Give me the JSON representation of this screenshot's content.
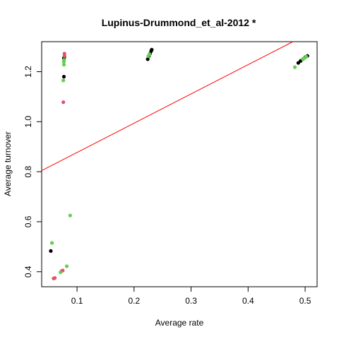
{
  "chart_data": {
    "type": "scatter",
    "title": "Lupinus-Drummond_et_al-2012 *",
    "xlabel": "Average rate",
    "ylabel": "Average turnover",
    "xlim": [
      0.038,
      0.521
    ],
    "ylim": [
      0.34,
      1.32
    ],
    "x_ticks": [
      0.1,
      0.2,
      0.3,
      0.4,
      0.5
    ],
    "x_tick_labels": [
      "0.1",
      "0.2",
      "0.3",
      "0.4",
      "0.5"
    ],
    "y_ticks": [
      0.4,
      0.6,
      0.8,
      1.0,
      1.2
    ],
    "y_tick_labels": [
      "0.4",
      "0.6",
      "0.8",
      "1.0",
      "1.2"
    ],
    "grid": false,
    "legend": "none",
    "colors": {
      "black": "#000000",
      "red": "#DF536B",
      "green": "#61D04F",
      "line": "#FF0000"
    },
    "regression_line": {
      "intercept": 0.76,
      "slope": 1.17
    },
    "series": [
      {
        "color_key": "black",
        "points": [
          [
            0.054,
            0.483
          ],
          [
            0.077,
            1.18
          ],
          [
            0.077,
            1.25
          ],
          [
            0.077,
            1.255
          ],
          [
            0.078,
            1.26
          ],
          [
            0.224,
            1.25
          ],
          [
            0.226,
            1.262
          ],
          [
            0.228,
            1.272
          ],
          [
            0.23,
            1.282
          ],
          [
            0.231,
            1.288
          ],
          [
            0.488,
            1.235
          ],
          [
            0.492,
            1.243
          ],
          [
            0.496,
            1.25
          ],
          [
            0.5,
            1.258
          ],
          [
            0.504,
            1.263
          ]
        ]
      },
      {
        "color_key": "red",
        "points": [
          [
            0.059,
            0.373
          ],
          [
            0.061,
            0.375
          ],
          [
            0.073,
            0.403
          ],
          [
            0.075,
            0.405
          ],
          [
            0.076,
            1.078
          ],
          [
            0.078,
            1.262
          ],
          [
            0.078,
            1.272
          ]
        ]
      },
      {
        "color_key": "green",
        "points": [
          [
            0.056,
            0.515
          ],
          [
            0.071,
            0.398
          ],
          [
            0.082,
            0.422
          ],
          [
            0.088,
            0.625
          ],
          [
            0.076,
            1.165
          ],
          [
            0.077,
            1.228
          ],
          [
            0.077,
            1.24
          ],
          [
            0.077,
            1.247
          ],
          [
            0.225,
            1.262
          ],
          [
            0.227,
            1.27
          ],
          [
            0.482,
            1.218
          ],
          [
            0.496,
            1.25
          ],
          [
            0.499,
            1.255
          ],
          [
            0.502,
            1.26
          ]
        ]
      }
    ]
  }
}
